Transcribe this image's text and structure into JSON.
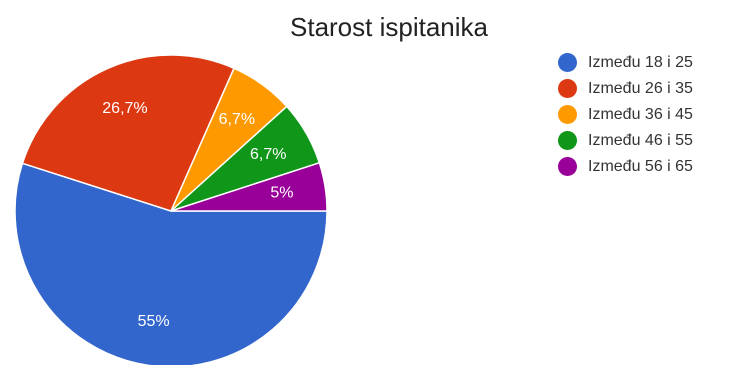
{
  "chart_data": {
    "type": "pie",
    "title": "Starost ispitanika",
    "legend_position": "right",
    "slices": [
      {
        "label": "Između 18 i 25",
        "value": 55,
        "display": "55%",
        "color": "#3366CC"
      },
      {
        "label": "Između 26 i 35",
        "value": 26.7,
        "display": "26,7%",
        "color": "#DC3912"
      },
      {
        "label": "Između 36 i 45",
        "value": 6.7,
        "display": "6,7%",
        "color": "#FF9900"
      },
      {
        "label": "Između 46 i 55",
        "value": 6.7,
        "display": "6,7%",
        "color": "#109618"
      },
      {
        "label": "Između 56 i 65",
        "value": 5,
        "display": "5%",
        "color": "#990099"
      }
    ]
  }
}
